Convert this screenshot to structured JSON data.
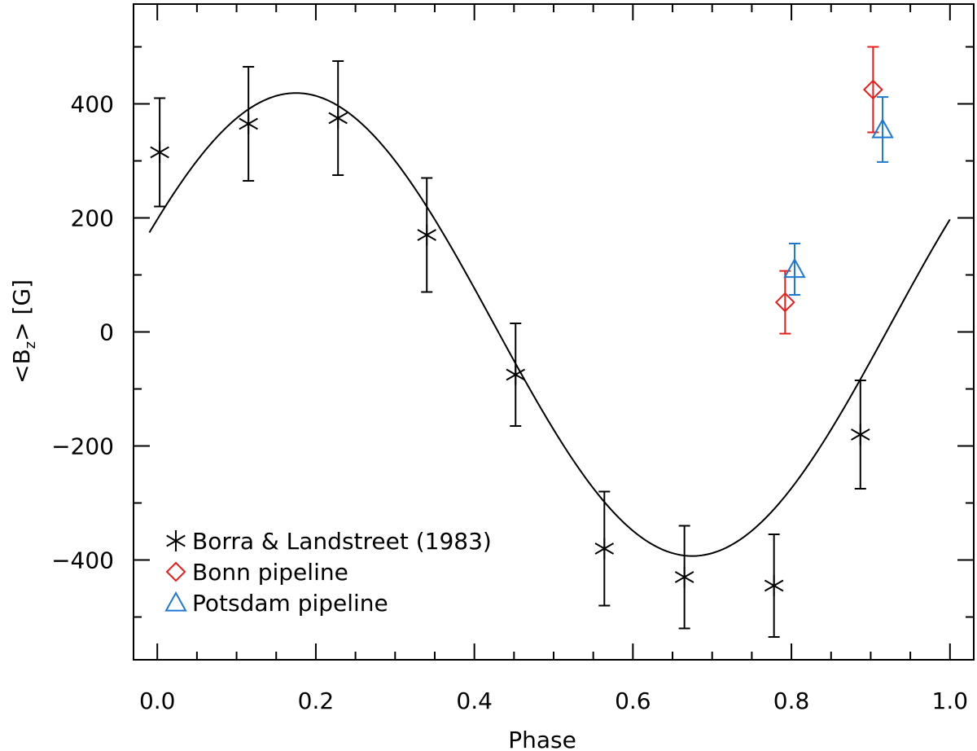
{
  "chart_data": {
    "type": "scatter",
    "title": "",
    "xlabel": "Phase",
    "ylabel_main": "<B",
    "ylabel_sub": "z",
    "ylabel_tail": "> [G]",
    "xlim": [
      -0.03,
      1.03
    ],
    "ylim": [
      -575,
      575
    ],
    "x_ticks": [
      0.0,
      0.2,
      0.4,
      0.6,
      0.8,
      1.0
    ],
    "x_tick_labels": [
      "0.0",
      "0.2",
      "0.4",
      "0.6",
      "0.8",
      "1.0"
    ],
    "y_ticks": [
      -400,
      -200,
      0,
      200,
      400
    ],
    "y_tick_labels": [
      "−400",
      "−200",
      "0",
      "200",
      "400"
    ],
    "grid": false,
    "legend_position": "bottom-left",
    "series": [
      {
        "name": "Borra & Landstreet (1983)",
        "marker": "asterisk",
        "color": "#000000",
        "points": [
          {
            "x": 0.003,
            "y": 315,
            "err": 95
          },
          {
            "x": 0.115,
            "y": 365,
            "err": 100
          },
          {
            "x": 0.228,
            "y": 375,
            "err": 100
          },
          {
            "x": 0.34,
            "y": 170,
            "err": 100
          },
          {
            "x": 0.452,
            "y": -75,
            "err": 90
          },
          {
            "x": 0.564,
            "y": -380,
            "err": 100
          },
          {
            "x": 0.665,
            "y": -430,
            "err": 90
          },
          {
            "x": 0.778,
            "y": -445,
            "err": 90
          },
          {
            "x": 0.887,
            "y": -180,
            "err": 95
          }
        ]
      },
      {
        "name": "Bonn pipeline",
        "marker": "diamond",
        "color": "#e8201c",
        "points": [
          {
            "x": 0.792,
            "y": 52,
            "err": 55
          },
          {
            "x": 0.903,
            "y": 425,
            "err": 75
          }
        ]
      },
      {
        "name": "Potsdam pipeline",
        "marker": "triangle",
        "color": "#1e78d2",
        "points": [
          {
            "x": 0.804,
            "y": 110,
            "err": 45
          },
          {
            "x": 0.915,
            "y": 355,
            "err": 57
          }
        ]
      }
    ],
    "model_curve": {
      "color": "#000000",
      "offset": 13,
      "amplitude": 406,
      "phase_of_max": 0.175,
      "x_range": [
        -0.01,
        1.0
      ]
    }
  }
}
